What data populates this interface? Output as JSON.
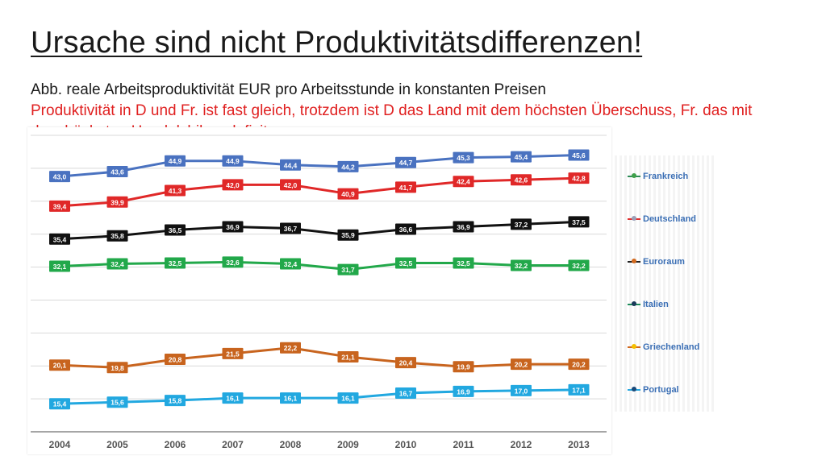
{
  "slide": {
    "title": "Ursache sind nicht Produktivitätsdifferenzen!",
    "subtitle_line1": "Abb. reale Arbeitsproduktivität EUR pro Arbeitsstunde in konstanten Preisen",
    "subtitle_line2": "Produktivität in D und Fr. ist fast gleich, trotzdem ist D das Land mit dem höchsten Überschuss, Fr. das mit dem höchsten Handelsbilanzdefizit.",
    "accent_red": "#e02020"
  },
  "legend": [
    {
      "label": "Frankreich",
      "line_color": "#2e8b57",
      "dot_color": "#3fa04a"
    },
    {
      "label": "Deutschland",
      "line_color": "#e03030",
      "dot_color": "#9aa0b8"
    },
    {
      "label": "Euroraum",
      "line_color": "#222222",
      "dot_color": "#d2691e"
    },
    {
      "label": "Italien",
      "line_color": "#1e8c5a",
      "dot_color": "#1a3a5a"
    },
    {
      "label": "Griechenland",
      "line_color": "#d2691e",
      "dot_color": "#f5c000"
    },
    {
      "label": "Portugal",
      "line_color": "#2aa8e0",
      "dot_color": "#1a4a7a"
    }
  ],
  "chart_data": {
    "type": "line",
    "x": [
      "2004",
      "2005",
      "2006",
      "2007",
      "2008",
      "2009",
      "2010",
      "2011",
      "2012",
      "2013"
    ],
    "ylim": [
      12,
      48
    ],
    "grid": true,
    "legend_position": "right",
    "series": [
      {
        "color": "#4a72c0",
        "label_bg": "#4a72c0",
        "values": [
          43.0,
          43.6,
          44.9,
          44.9,
          44.4,
          44.2,
          44.7,
          45.3,
          45.4,
          45.6
        ],
        "labels": [
          "43,0",
          "43,6",
          "44,9",
          "44,9",
          "44,4",
          "44,2",
          "44,7",
          "45,3",
          "45,4",
          "45,6"
        ]
      },
      {
        "color": "#e02828",
        "label_bg": "#e02828",
        "values": [
          39.4,
          39.9,
          41.3,
          42.0,
          42.0,
          40.9,
          41.7,
          42.4,
          42.6,
          42.8
        ],
        "labels": [
          "39,4",
          "39,9",
          "41,3",
          "42,0",
          "42,0",
          "40,9",
          "41,7",
          "42,4",
          "42,6",
          "42,8"
        ]
      },
      {
        "color": "#111111",
        "label_bg": "#111111",
        "values": [
          35.4,
          35.8,
          36.5,
          36.9,
          36.7,
          35.9,
          36.6,
          36.9,
          37.2,
          37.5
        ],
        "labels": [
          "35,4",
          "35,8",
          "36,5",
          "36,9",
          "36,7",
          "35,9",
          "36,6",
          "36,9",
          "37,2",
          "37,5"
        ]
      },
      {
        "color": "#22a84a",
        "label_bg": "#22a84a",
        "values": [
          32.1,
          32.4,
          32.5,
          32.6,
          32.4,
          31.7,
          32.5,
          32.5,
          32.2,
          32.2
        ],
        "labels": [
          "32,1",
          "32,4",
          "32,5",
          "32,6",
          "32,4",
          "31,7",
          "32,5",
          "32,5",
          "32,2",
          "32,2"
        ]
      },
      {
        "color": "#c8641e",
        "label_bg": "#c8641e",
        "values": [
          20.1,
          19.8,
          20.8,
          21.5,
          22.2,
          21.1,
          20.4,
          19.9,
          20.2,
          20.2
        ],
        "labels": [
          "20,1",
          "19,8",
          "20,8",
          "21,5",
          "22,2",
          "21,1",
          "20,4",
          "19,9",
          "20,2",
          "20,2"
        ]
      },
      {
        "color": "#22a8e0",
        "label_bg": "#22a8e0",
        "values": [
          15.4,
          15.6,
          15.8,
          16.1,
          16.1,
          16.1,
          16.7,
          16.9,
          17.0,
          17.1
        ],
        "labels": [
          "15,4",
          "15,6",
          "15,8",
          "16,1",
          "16,1",
          "16,1",
          "16,7",
          "16,9",
          "17,0",
          "17,1"
        ]
      }
    ]
  }
}
